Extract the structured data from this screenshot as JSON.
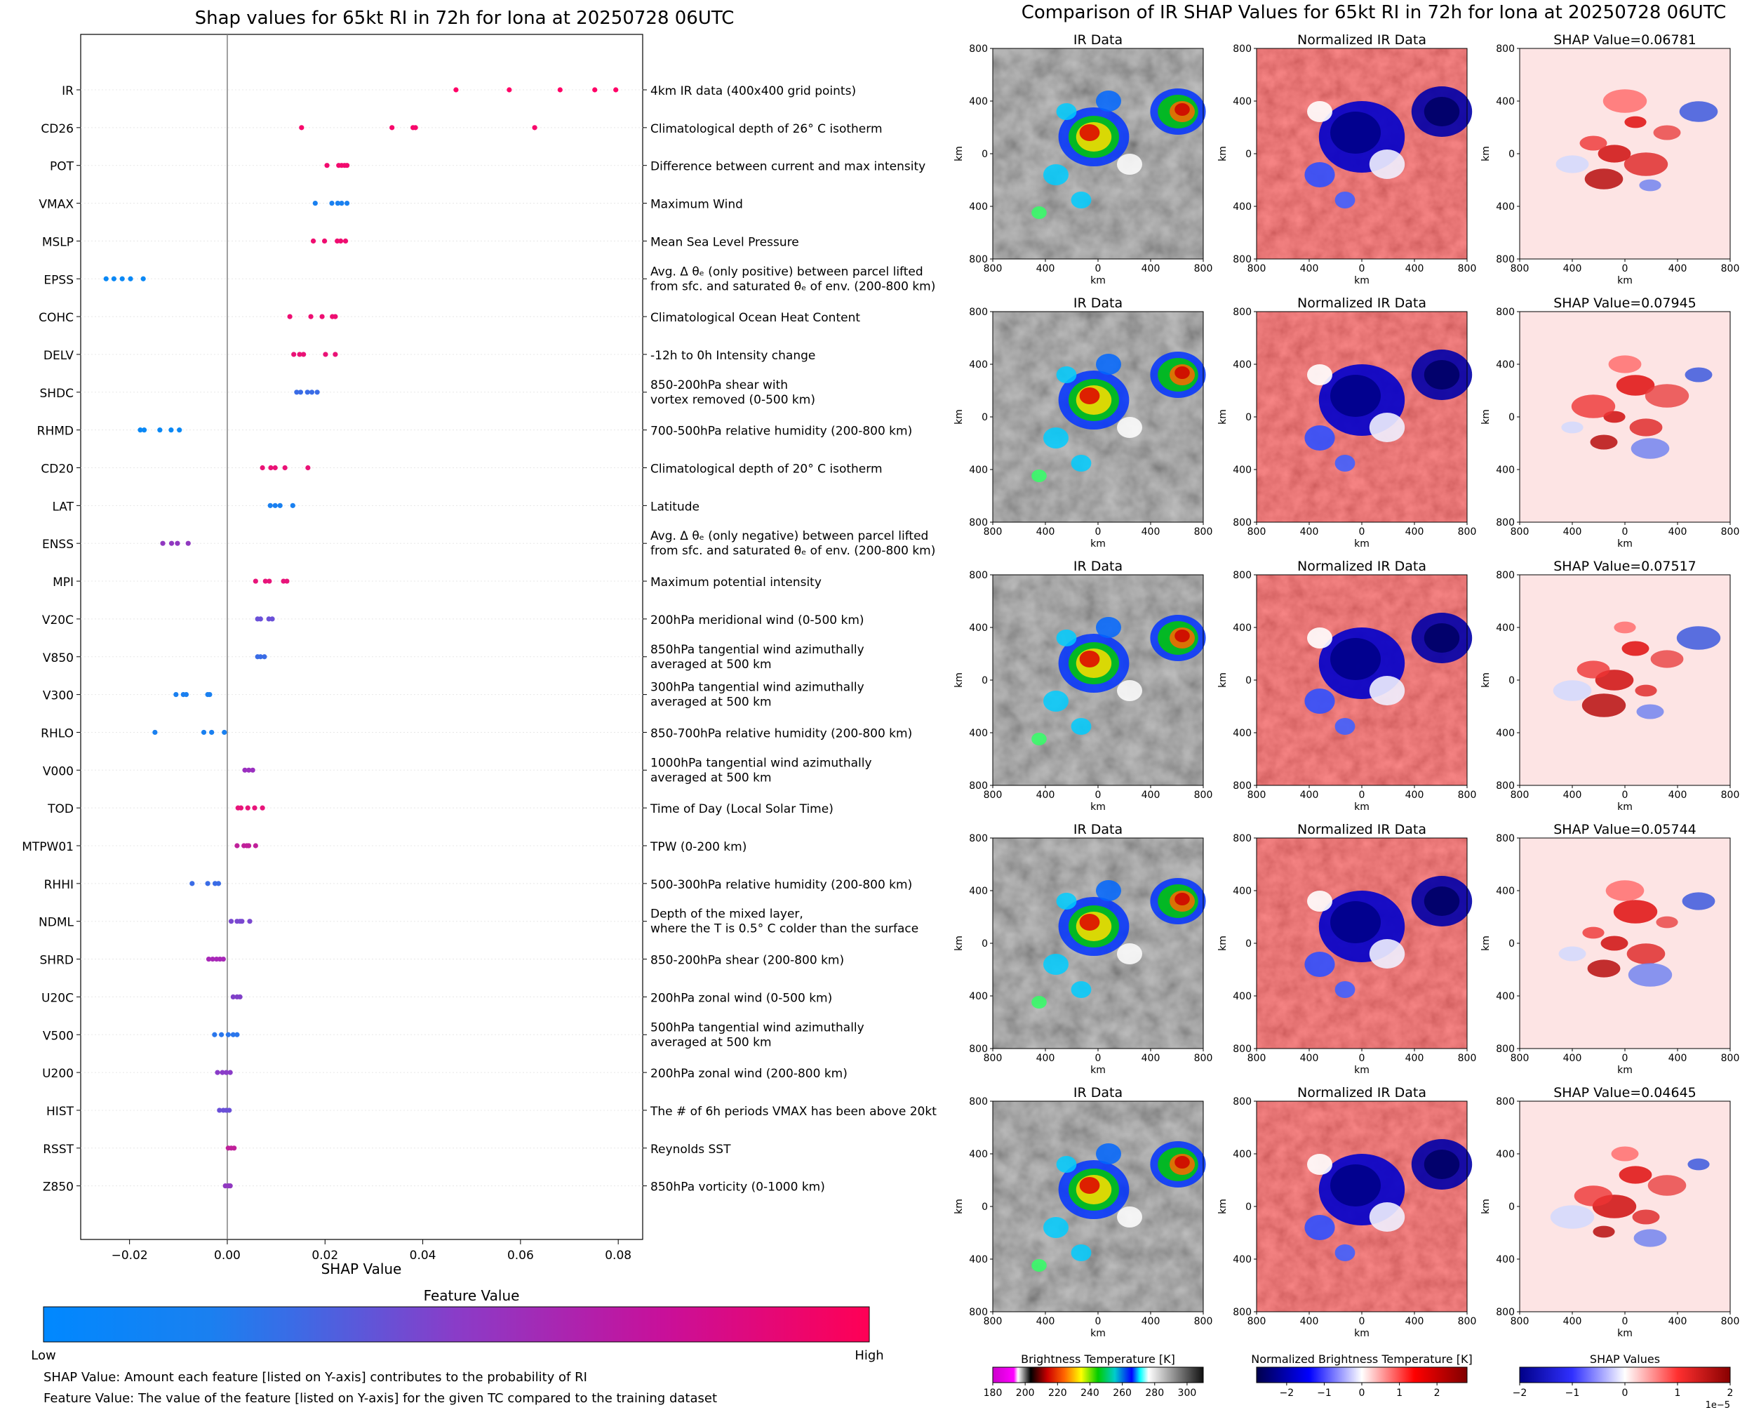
{
  "chart_data": [
    {
      "type": "scatter",
      "title": "Shap values for 65kt RI in 72h for Iona at 20250728 06UTC",
      "xlabel": "SHAP Value",
      "ylabel": "",
      "xlim": [
        -0.03,
        0.085
      ],
      "xticks": [
        -0.02,
        0.0,
        0.02,
        0.04,
        0.06,
        0.08
      ],
      "xtick_labels": [
        "−0.02",
        "0.00",
        "0.02",
        "0.04",
        "0.06",
        "0.08"
      ],
      "grid": false,
      "zero_line": 0.0,
      "features": [
        {
          "name": "IR",
          "desc": [
            "4km IR data (400x400 grid points)"
          ],
          "color": "#ff0066",
          "values": [
            0.0468,
            0.0577,
            0.0681,
            0.0752,
            0.0795
          ]
        },
        {
          "name": "CD26",
          "desc": [
            "Climatological depth of 26° C isotherm"
          ],
          "color": "#f7086b",
          "values": [
            0.0152,
            0.0337,
            0.038,
            0.0385,
            0.0629
          ]
        },
        {
          "name": "POT",
          "desc": [
            "Difference between current and max intensity"
          ],
          "color": "#f20a6e",
          "values": [
            0.0204,
            0.0228,
            0.0234,
            0.024,
            0.0245
          ]
        },
        {
          "name": "VMAX",
          "desc": [
            "Maximum Wind"
          ],
          "color": "#1a80f0",
          "values": [
            0.018,
            0.0214,
            0.0226,
            0.0234,
            0.0245
          ]
        },
        {
          "name": "MSLP",
          "desc": [
            "Mean Sea Level Pressure"
          ],
          "color": "#ef0d70",
          "values": [
            0.0176,
            0.0199,
            0.0225,
            0.0232,
            0.0242
          ]
        },
        {
          "name": "EPSS",
          "desc": [
            "Avg. Δ θₑ (only positive) between parcel lifted",
            "from sfc. and saturated θₑ of env. (200-800 km)"
          ],
          "color": "#0a88f5",
          "values": [
            -0.0248,
            -0.0232,
            -0.0215,
            -0.0198,
            -0.0172
          ]
        },
        {
          "name": "COHC",
          "desc": [
            "Climatological Ocean Heat Content"
          ],
          "color": "#ee0e72",
          "values": [
            0.0128,
            0.0171,
            0.0194,
            0.0215,
            0.0221
          ]
        },
        {
          "name": "DELV",
          "desc": [
            "-12h to 0h Intensity change"
          ],
          "color": "#ea1276",
          "values": [
            0.0136,
            0.0148,
            0.0156,
            0.0201,
            0.0221
          ]
        },
        {
          "name": "SHDC",
          "desc": [
            "850-200hPa shear with",
            "vortex removed (0-500 km)"
          ],
          "color": "#3a6ce6",
          "values": [
            0.0142,
            0.015,
            0.0164,
            0.0173,
            0.0184
          ]
        },
        {
          "name": "RHMD",
          "desc": [
            "700-500hPa relative humidity (200-800 km)"
          ],
          "color": "#0a88f5",
          "values": [
            -0.0178,
            -0.017,
            -0.0138,
            -0.0115,
            -0.0098
          ]
        },
        {
          "name": "CD20",
          "desc": [
            "Climatological depth of 20° C isotherm"
          ],
          "color": "#ea1276",
          "values": [
            0.0072,
            0.0089,
            0.0098,
            0.0118,
            0.0165
          ]
        },
        {
          "name": "LAT",
          "desc": [
            "Latitude"
          ],
          "color": "#1a80f0",
          "values": [
            0.0088,
            0.0098,
            0.0108,
            0.0134
          ]
        },
        {
          "name": "ENSS",
          "desc": [
            "Avg. Δ θₑ (only negative) between parcel lifted",
            "from sfc. and saturated θₑ of env. (200-800 km)"
          ],
          "color": "#9038c0",
          "values": [
            -0.0132,
            -0.0114,
            -0.0102,
            -0.008
          ]
        },
        {
          "name": "MPI",
          "desc": [
            "Maximum potential intensity"
          ],
          "color": "#e8147a",
          "values": [
            0.0058,
            0.0078,
            0.0086,
            0.0115,
            0.0122
          ]
        },
        {
          "name": "V20C",
          "desc": [
            "200hPa meridional wind (0-500 km)"
          ],
          "color": "#6a50d8",
          "values": [
            0.0062,
            0.0068,
            0.0085,
            0.0092
          ]
        },
        {
          "name": "V850",
          "desc": [
            "850hPa tangential wind azimuthally",
            "averaged at 500 km"
          ],
          "color": "#3a6ce6",
          "values": [
            0.0062,
            0.0068,
            0.0076
          ]
        },
        {
          "name": "V300",
          "desc": [
            "300hPa tangential wind azimuthally",
            "averaged at 500 km"
          ],
          "color": "#1a80f0",
          "values": [
            -0.0105,
            -0.009,
            -0.0084,
            -0.004,
            -0.0036
          ]
        },
        {
          "name": "RHLO",
          "desc": [
            "850-700hPa relative humidity (200-800 km)"
          ],
          "color": "#1a80f0",
          "values": [
            -0.0148,
            -0.0048,
            -0.0032,
            -0.0006
          ]
        },
        {
          "name": "V000",
          "desc": [
            "1000hPa tangential wind azimuthally",
            "averaged at 500 km"
          ],
          "color": "#9b30c0",
          "values": [
            0.0036,
            0.0044,
            0.0052
          ]
        },
        {
          "name": "TOD",
          "desc": [
            "Time of Day (Local Solar Time)"
          ],
          "color": "#e8147a",
          "values": [
            0.0022,
            0.0028,
            0.0042,
            0.0056,
            0.0072
          ]
        },
        {
          "name": "MTPW01",
          "desc": [
            "TPW (0-200 km)"
          ],
          "color": "#c0209a",
          "values": [
            0.002,
            0.0034,
            0.004,
            0.0044,
            0.0058
          ]
        },
        {
          "name": "RHHI",
          "desc": [
            "500-300hPa relative humidity (200-800 km)"
          ],
          "color": "#3a6ce6",
          "values": [
            -0.0072,
            -0.004,
            -0.0025,
            -0.0018
          ]
        },
        {
          "name": "NDML",
          "desc": [
            "Depth of the mixed layer,",
            "where the T is 0.5° C colder than the surface"
          ],
          "color": "#7a48d0",
          "values": [
            0.0008,
            0.002,
            0.0026,
            0.003,
            0.0046
          ]
        },
        {
          "name": "SHRD",
          "desc": [
            "850-200hPa shear (200-800 km)"
          ],
          "color": "#a828b8",
          "values": [
            -0.0038,
            -0.003,
            -0.0022,
            -0.0015,
            -0.0008
          ]
        },
        {
          "name": "U20C",
          "desc": [
            "200hPa zonal wind (0-500 km)"
          ],
          "color": "#8040c8",
          "values": [
            0.0012,
            0.002,
            0.0026
          ]
        },
        {
          "name": "V500",
          "desc": [
            "500hPa tangential wind azimuthally",
            "averaged at 500 km"
          ],
          "color": "#2a76ec",
          "values": [
            -0.0026,
            -0.0012,
            0.0002,
            0.0012,
            0.002
          ]
        },
        {
          "name": "U200",
          "desc": [
            "200hPa zonal wind (200-800 km)"
          ],
          "color": "#8a3cc8",
          "values": [
            -0.002,
            -0.001,
            -0.0002,
            0.0006
          ]
        },
        {
          "name": "HIST",
          "desc": [
            "The # of 6h periods VMAX has been above 20kt"
          ],
          "color": "#6a50d8",
          "values": [
            -0.0016,
            -0.0008,
            -0.0002,
            0.0004
          ]
        },
        {
          "name": "RSST",
          "desc": [
            "Reynolds SST"
          ],
          "color": "#c0209a",
          "values": [
            0.0002,
            0.0008,
            0.0014
          ]
        },
        {
          "name": "Z850",
          "desc": [
            "850hPa vorticity (0-1000 km)"
          ],
          "color": "#9038c0",
          "values": [
            -0.0004,
            0.0002,
            0.0006
          ]
        }
      ]
    },
    {
      "type": "heatmap",
      "title": "Comparison of IR SHAP Values for 65kt RI in 72h for Iona at 20250728 06UTC",
      "xlabel": "km",
      "ylabel": "km",
      "axis_ticks": [
        "800",
        "400",
        "0",
        "400",
        "800"
      ],
      "column_titles": [
        "IR Data",
        "Normalized IR Data"
      ],
      "shap_titles": [
        "SHAP Value=0.06781",
        "SHAP Value=0.07945",
        "SHAP Value=0.07517",
        "SHAP Value=0.05744",
        "SHAP Value=0.04645"
      ],
      "shap_values": [
        0.06781,
        0.07945,
        0.07517,
        0.05744,
        0.04645
      ],
      "colorbars": [
        {
          "label": "Brightness Temperature [K]",
          "ticks": [
            "180",
            "200",
            "220",
            "240",
            "260",
            "280",
            "300"
          ],
          "range": [
            180,
            310
          ]
        },
        {
          "label": "Normalized Brightness Temperature [K]",
          "ticks": [
            "−2",
            "−1",
            "0",
            "1",
            "2"
          ],
          "range": [
            -2.8,
            2.8
          ]
        },
        {
          "label": "SHAP Values",
          "ticks": [
            "−2",
            "−1",
            "0",
            "1",
            "2"
          ],
          "range": [
            -2,
            2
          ],
          "exponent": "1e−5"
        }
      ]
    }
  ],
  "legend": {
    "title": "Feature Value",
    "low": "Low",
    "high": "High",
    "colors": {
      "low": "#0088ff",
      "high": "#ff0055"
    }
  },
  "notes": [
    "SHAP Value: Amount each feature [listed on Y-axis] contributes to the probability of RI",
    "Feature Value: The value of the feature [listed on Y-axis] for the given TC compared to the training dataset"
  ]
}
